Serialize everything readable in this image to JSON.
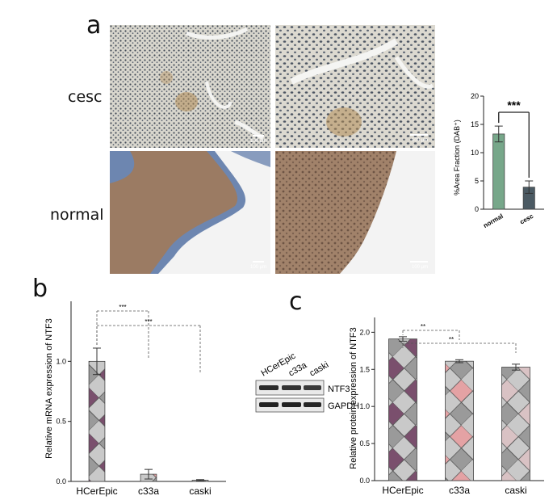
{
  "panels": {
    "a": "a",
    "b": "b",
    "c": "c"
  },
  "panel_a": {
    "row_labels": [
      "cesc",
      "normal"
    ],
    "scale_labels": [
      "100 μm",
      "100 μm",
      "100 μm",
      "100 μm"
    ],
    "tissue_colors": {
      "cesc_bg": "#d9d6cc",
      "cesc_dots": "#3e4752",
      "normal_tissue": "#9b7b63",
      "normal_bg": "#f3f3f3",
      "blue_stain": "#6d86b0"
    }
  },
  "blot": {
    "lanes": [
      "HCerEpic",
      "c33a",
      "caski"
    ],
    "bands": [
      "NTF3",
      "GAPDH"
    ]
  },
  "chart_data": [
    {
      "id": "a-dab",
      "type": "bar",
      "categories": [
        "normal",
        "cesc"
      ],
      "values": [
        13.3,
        3.9
      ],
      "errors": [
        1.4,
        1.1
      ],
      "ylabel": "%Area Fraction (DAB⁺)",
      "ylim": [
        0,
        20
      ],
      "yticks": [
        0,
        5,
        10,
        15,
        20
      ],
      "significance": [
        {
          "pair": [
            "normal",
            "cesc"
          ],
          "label": "***"
        }
      ],
      "colors": [
        "#77a78a",
        "#4b5a63"
      ]
    },
    {
      "id": "b-mrna",
      "type": "bar",
      "categories": [
        "HCerEpic",
        "c33a",
        "caski"
      ],
      "values": [
        1.0,
        0.06,
        0.01
      ],
      "errors": [
        0.11,
        0.04,
        0.005
      ],
      "ylabel": "Relative mRNA expression of NTF3",
      "ylim": [
        0,
        1.5
      ],
      "yticks": [
        0.0,
        0.5,
        1.0
      ],
      "significance": [
        {
          "pair": [
            "HCerEpic",
            "c33a"
          ],
          "label": "***"
        },
        {
          "pair": [
            "HCerEpic",
            "caski"
          ],
          "label": "***"
        }
      ],
      "colors": [
        "#7a4f6d",
        "#e4a2a4",
        "#d9c2c4"
      ]
    },
    {
      "id": "c-protein",
      "type": "bar",
      "categories": [
        "HCerEpic",
        "c33a",
        "caski"
      ],
      "values": [
        1.91,
        1.61,
        1.53
      ],
      "errors": [
        0.03,
        0.02,
        0.04
      ],
      "ylabel": "Relative protein expression of NTF3",
      "ylim": [
        0,
        2.2
      ],
      "yticks": [
        0.0,
        0.5,
        1.0,
        1.5,
        2.0
      ],
      "significance": [
        {
          "pair": [
            "HCerEpic",
            "c33a"
          ],
          "label": "**"
        },
        {
          "pair": [
            "HCerEpic",
            "caski"
          ],
          "label": "**"
        }
      ],
      "colors": [
        "#7a4f6d",
        "#e4a2a4",
        "#d9c2c4"
      ]
    }
  ]
}
